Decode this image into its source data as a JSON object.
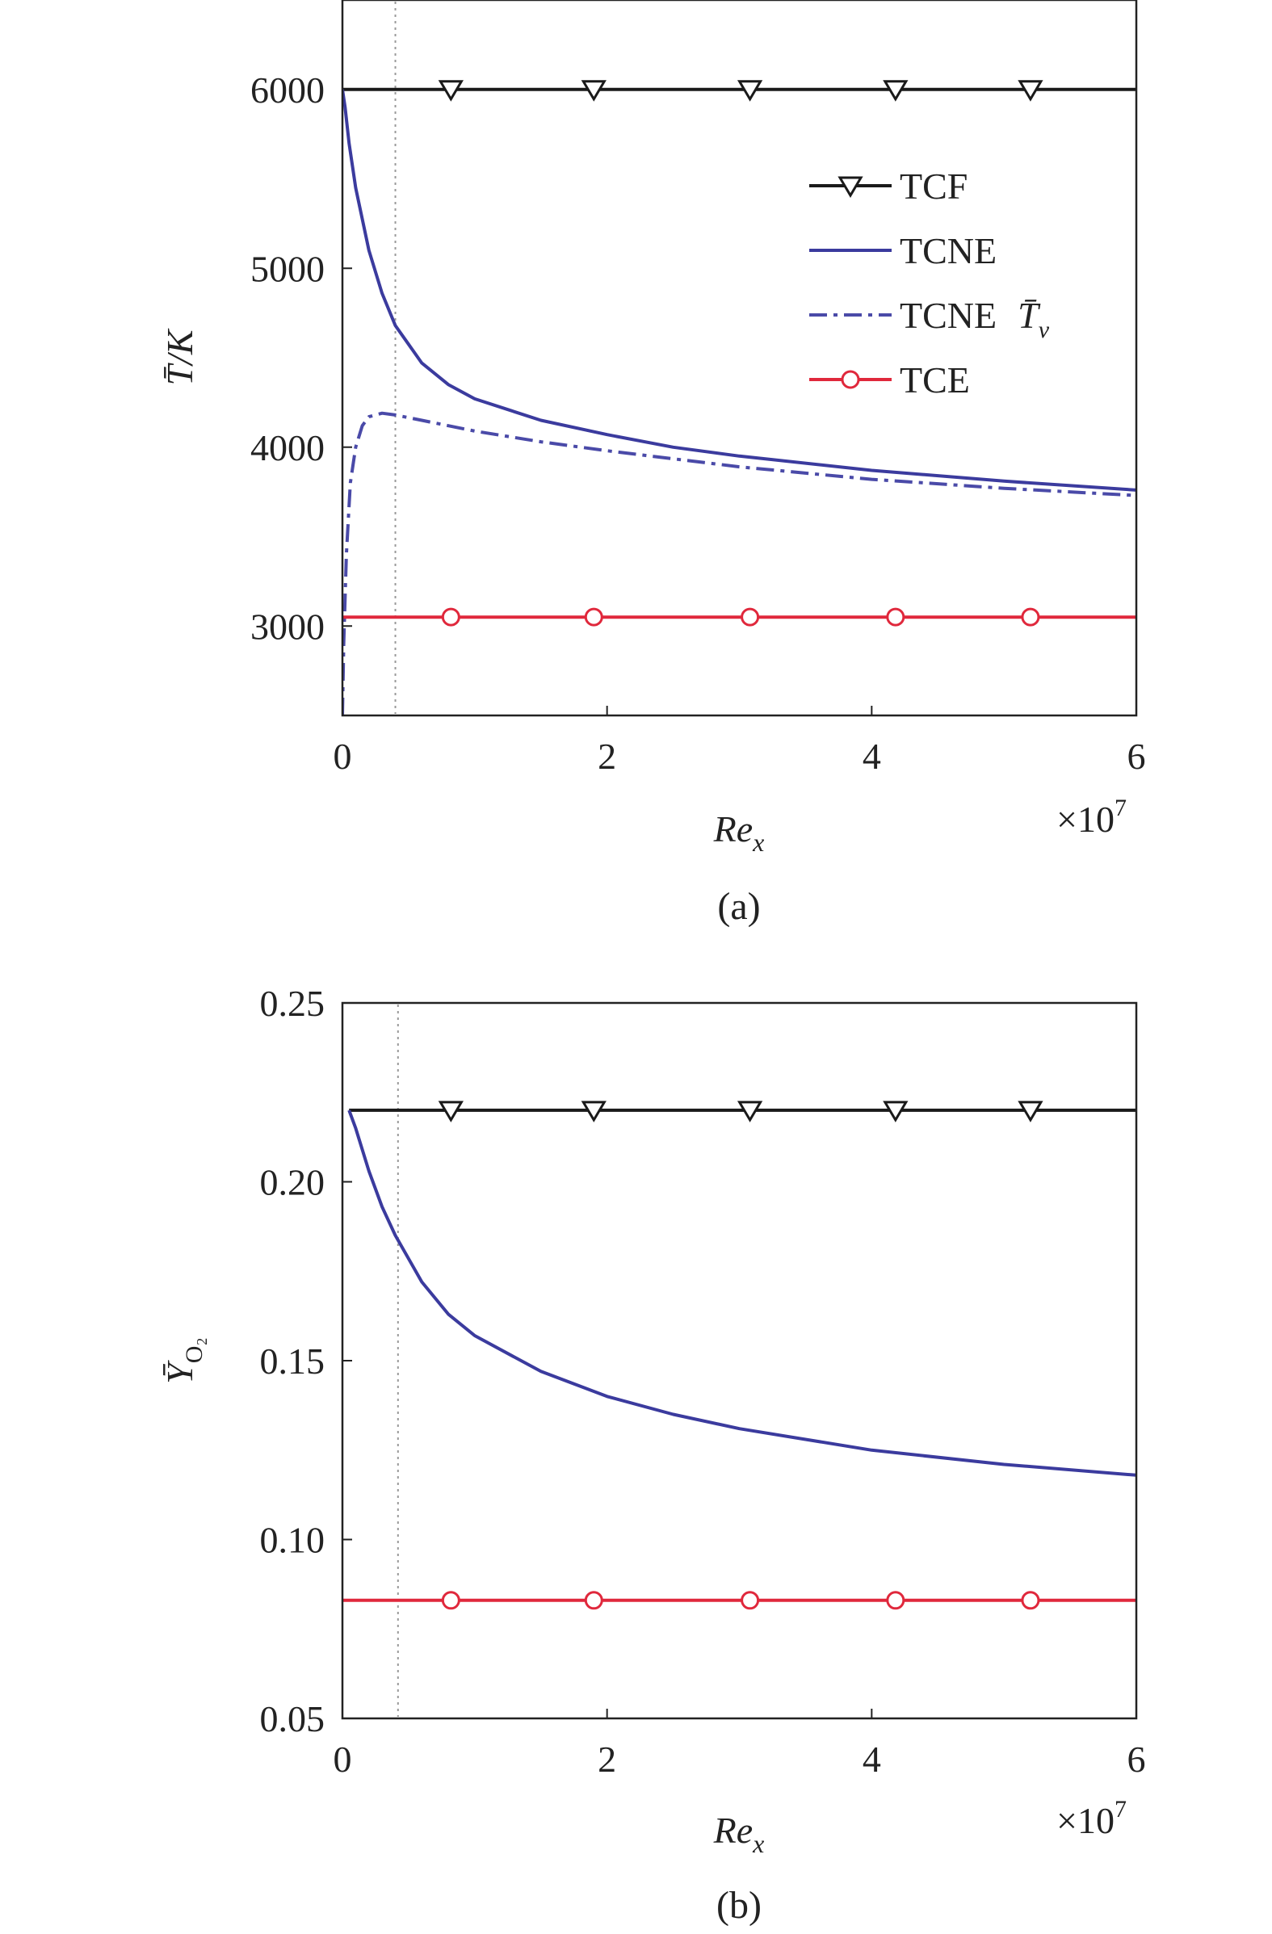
{
  "chart_data": [
    {
      "type": "line",
      "panel_label": "(a)",
      "ylabel": "T̄/K",
      "xlabel": "Re",
      "xlabel_sub": "x",
      "x_multiplier": "×10",
      "x_multiplier_exp": "7",
      "xlim": [
        0,
        6
      ],
      "ylim": [
        2500,
        6500
      ],
      "xticks": [
        "0",
        "2",
        "4",
        "6"
      ],
      "xtick_values": [
        0,
        2,
        4,
        6
      ],
      "yticks": [
        "3000",
        "4000",
        "5000",
        "6000"
      ],
      "ytick_values": [
        3000,
        4000,
        5000,
        6000
      ],
      "reference_line_x": 0.4,
      "legend_position": "upper-right",
      "series": [
        {
          "name": "TCF",
          "color": "#1a1a1a",
          "style": "solid",
          "marker": "triangle-down",
          "x": [
            0,
            6
          ],
          "y": [
            6000,
            6000
          ],
          "marker_x": [
            0.82,
            1.9,
            3.08,
            4.18,
            5.2
          ]
        },
        {
          "name": "TCNE",
          "color": "#3b3b9e",
          "style": "solid",
          "marker": "none",
          "x": [
            0,
            0.02,
            0.05,
            0.1,
            0.2,
            0.3,
            0.4,
            0.6,
            0.8,
            1.0,
            1.5,
            2.0,
            2.5,
            3.0,
            4.0,
            5.0,
            6.0
          ],
          "y": [
            6000,
            5900,
            5700,
            5450,
            5100,
            4860,
            4680,
            4470,
            4350,
            4270,
            4150,
            4070,
            4000,
            3950,
            3870,
            3810,
            3760
          ]
        },
        {
          "name": "TCNE",
          "name_math": "T̄",
          "name_math_sub": "v",
          "color": "#4a4aa8",
          "style": "dashdot",
          "marker": "none",
          "x": [
            0,
            0.01,
            0.03,
            0.06,
            0.1,
            0.15,
            0.2,
            0.3,
            0.4,
            0.6,
            0.8,
            1.0,
            1.5,
            2.0,
            3.0,
            4.0,
            5.0,
            6.0
          ],
          "y": [
            2500,
            2900,
            3400,
            3800,
            4000,
            4120,
            4170,
            4190,
            4180,
            4150,
            4120,
            4090,
            4030,
            3980,
            3890,
            3820,
            3770,
            3730
          ]
        },
        {
          "name": "TCE",
          "color": "#e0283c",
          "style": "solid",
          "marker": "circle",
          "x": [
            0,
            6
          ],
          "y": [
            3050,
            3050
          ],
          "marker_x": [
            0.82,
            1.9,
            3.08,
            4.18,
            5.2
          ]
        }
      ]
    },
    {
      "type": "line",
      "panel_label": "(b)",
      "ylabel": "Ȳ",
      "ylabel_sub": "O₂",
      "xlabel": "Re",
      "xlabel_sub": "x",
      "x_multiplier": "×10",
      "x_multiplier_exp": "7",
      "xlim": [
        0,
        6
      ],
      "ylim": [
        0.05,
        0.25
      ],
      "xticks": [
        "0",
        "2",
        "4",
        "6"
      ],
      "xtick_values": [
        0,
        2,
        4,
        6
      ],
      "yticks": [
        "0.05",
        "0.10",
        "0.15",
        "0.20",
        "0.25"
      ],
      "ytick_values": [
        0.05,
        0.1,
        0.15,
        0.2,
        0.25
      ],
      "reference_line_x": 0.42,
      "series": [
        {
          "name": "TCF",
          "color": "#1a1a1a",
          "style": "solid",
          "marker": "triangle-down",
          "x": [
            0.05,
            6
          ],
          "y": [
            0.22,
            0.22
          ],
          "marker_x": [
            0.82,
            1.9,
            3.08,
            4.18,
            5.2
          ]
        },
        {
          "name": "TCNE",
          "color": "#3b3b9e",
          "style": "solid",
          "marker": "none",
          "x": [
            0.05,
            0.1,
            0.2,
            0.3,
            0.4,
            0.6,
            0.8,
            1.0,
            1.5,
            2.0,
            2.5,
            3.0,
            4.0,
            5.0,
            6.0
          ],
          "y": [
            0.22,
            0.215,
            0.203,
            0.193,
            0.185,
            0.172,
            0.163,
            0.157,
            0.147,
            0.14,
            0.135,
            0.131,
            0.125,
            0.121,
            0.118
          ]
        },
        {
          "name": "TCE",
          "color": "#e0283c",
          "style": "solid",
          "marker": "circle",
          "x": [
            0,
            6
          ],
          "y": [
            0.083,
            0.083
          ],
          "marker_x": [
            0.82,
            1.9,
            3.08,
            4.18,
            5.2
          ]
        }
      ]
    }
  ]
}
